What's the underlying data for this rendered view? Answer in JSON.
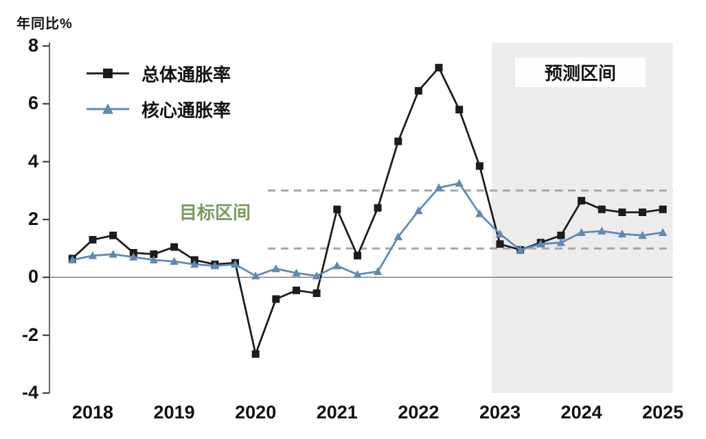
{
  "page": {
    "background": "#ffffff"
  },
  "chart_data": {
    "type": "line",
    "title": "",
    "ylabel": "年同比%",
    "xlabel": "",
    "ylim": [
      -4,
      8
    ],
    "yticks": [
      8,
      6,
      4,
      2,
      0,
      -2,
      -4
    ],
    "xticks": [
      2018,
      2019,
      2020,
      2021,
      2022,
      2023,
      2024,
      2025
    ],
    "xmax": 2025.12,
    "grid": false,
    "legend_position": "top-left",
    "x": [
      2017.75,
      2018.0,
      2018.25,
      2018.5,
      2018.75,
      2019.0,
      2019.25,
      2019.5,
      2019.75,
      2020.0,
      2020.25,
      2020.5,
      2020.75,
      2021.0,
      2021.25,
      2021.5,
      2021.75,
      2022.0,
      2022.25,
      2022.5,
      2022.75,
      2023.0,
      2023.25,
      2023.5,
      2023.75,
      2024.0,
      2024.25,
      2024.5,
      2024.75,
      2025.0
    ],
    "series": [
      {
        "name": "总体通胀率",
        "color": "#1c1c1c",
        "marker": "square",
        "values": [
          0.65,
          1.3,
          1.45,
          0.85,
          0.8,
          1.05,
          0.6,
          0.45,
          0.5,
          -2.65,
          -0.75,
          -0.45,
          -0.55,
          2.35,
          0.75,
          2.4,
          4.7,
          6.45,
          7.25,
          5.8,
          3.85,
          1.15,
          0.95,
          1.2,
          1.45,
          2.65,
          2.35,
          2.25,
          2.25,
          2.35
        ]
      },
      {
        "name": "核心通胀率",
        "color": "#5e8ab4",
        "marker": "triangle",
        "values": [
          0.6,
          0.75,
          0.8,
          0.7,
          0.6,
          0.55,
          0.45,
          0.4,
          0.45,
          0.05,
          0.3,
          0.15,
          0.05,
          0.4,
          0.1,
          0.2,
          1.4,
          2.3,
          3.1,
          3.25,
          2.2,
          1.5,
          0.95,
          1.15,
          1.2,
          1.55,
          1.6,
          1.5,
          1.45,
          1.55
        ]
      }
    ],
    "target_band": {
      "label": "目标区间",
      "low": 1,
      "high": 3,
      "x_start": 2020.15,
      "label_color": "#7a9a5e",
      "line_color": "#a6a6a6"
    },
    "forecast_region": {
      "label": "预测区间",
      "x_start": 2022.9,
      "fill": "#ececec"
    }
  }
}
